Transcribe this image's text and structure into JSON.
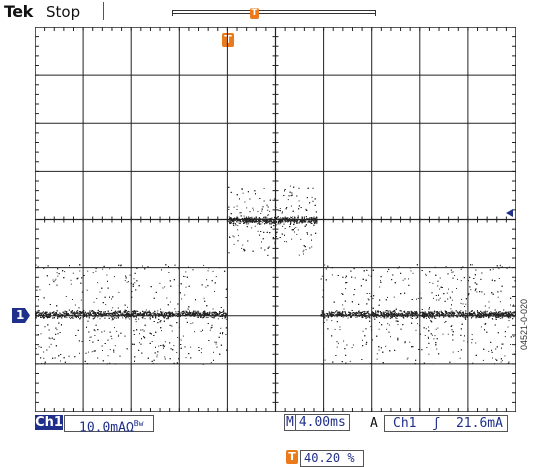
{
  "header": {
    "brand": "Tek",
    "status": "Stop",
    "trigger_marker": "T"
  },
  "display": {
    "channel_ground_marker": "1",
    "trace_color": "#222222"
  },
  "readout": {
    "channel": "Ch1",
    "vertical_scale": "10.0mAΩ",
    "bandwidth_symbol": "Bw",
    "timebase_prefix": "M",
    "timebase": "4.00ms",
    "acquisition_mode": "A",
    "trigger_source": "Ch1",
    "trigger_slope": "ʃ",
    "trigger_level": "21.6mA",
    "trigger_position": "40.20 %"
  },
  "figure_code": "04521-0-020",
  "colors": {
    "accent_blue": "#1f2f8a",
    "trigger_orange": "#ea7a1a"
  }
}
